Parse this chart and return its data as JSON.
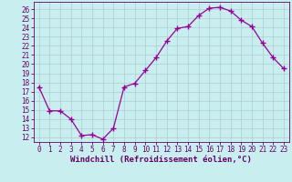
{
  "x": [
    0,
    1,
    2,
    3,
    4,
    5,
    6,
    7,
    8,
    9,
    10,
    11,
    12,
    13,
    14,
    15,
    16,
    17,
    18,
    19,
    20,
    21,
    22,
    23
  ],
  "y": [
    17.5,
    14.9,
    14.9,
    14.0,
    12.2,
    12.3,
    11.8,
    13.0,
    17.5,
    17.9,
    19.3,
    20.7,
    22.5,
    23.9,
    24.1,
    25.3,
    26.1,
    26.2,
    25.8,
    24.8,
    24.1,
    22.3,
    20.7,
    19.5
  ],
  "line_color": "#990099",
  "marker": "+",
  "bg_color": "#c8eef0",
  "grid_color": "#b0ccd0",
  "xlabel": "Windchill (Refroidissement éolien,°C)",
  "ylabel_ticks": [
    12,
    13,
    14,
    15,
    16,
    17,
    18,
    19,
    20,
    21,
    22,
    23,
    24,
    25,
    26
  ],
  "ylim": [
    11.5,
    26.8
  ],
  "xlim": [
    -0.5,
    23.5
  ],
  "axis_color": "#660066",
  "font_color": "#660066",
  "tick_fontsize": 5.5,
  "xlabel_fontsize": 6.5
}
